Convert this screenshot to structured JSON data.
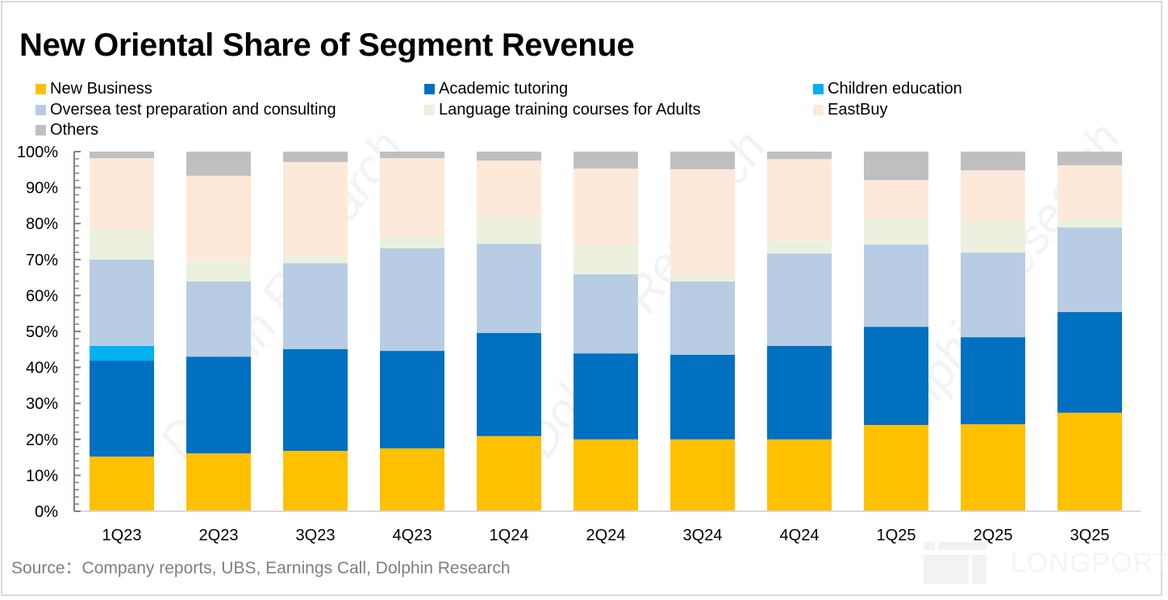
{
  "chart_data": {
    "type": "bar",
    "stacked": true,
    "percent_stacked": true,
    "title": "New Oriental Share of Segment Revenue",
    "xlabel": "",
    "ylabel": "",
    "ylim": [
      0,
      100
    ],
    "y_ticks": [
      "0%",
      "10%",
      "20%",
      "30%",
      "40%",
      "50%",
      "60%",
      "70%",
      "80%",
      "90%",
      "100%"
    ],
    "y_tick_values": [
      0,
      10,
      20,
      30,
      40,
      50,
      60,
      70,
      80,
      90,
      100
    ],
    "grid": false,
    "legend_position": "top",
    "categories": [
      "1Q23",
      "2Q23",
      "3Q23",
      "4Q23",
      "1Q24",
      "2Q24",
      "3Q24",
      "4Q24",
      "1Q25",
      "2Q25",
      "3Q25"
    ],
    "series": [
      {
        "name": "New Business",
        "color": "#FFC000",
        "values": [
          15.2,
          16.1,
          16.8,
          17.5,
          20.9,
          20.0,
          20.0,
          20.0,
          24.0,
          24.2,
          27.4
        ]
      },
      {
        "name": "Academic tutoring",
        "color": "#0070C0",
        "values": [
          26.7,
          26.9,
          28.3,
          27.1,
          28.7,
          23.9,
          23.5,
          26.0,
          27.3,
          24.2,
          28.0
        ]
      },
      {
        "name": "Children education",
        "color": "#00B0F0",
        "values": [
          4.1,
          0,
          0,
          0,
          0,
          0,
          0,
          0,
          0,
          0,
          0
        ]
      },
      {
        "name": "Oversea test preparation and consulting",
        "color": "#B8CCE4",
        "values": [
          24.0,
          20.9,
          23.9,
          28.5,
          24.8,
          22.0,
          20.4,
          25.7,
          22.9,
          23.5,
          23.5
        ]
      },
      {
        "name": "Language training courses for Adults",
        "color": "#EBF1DE",
        "values": [
          8.3,
          5.8,
          2.0,
          3.6,
          7.2,
          8.1,
          2.0,
          3.6,
          7.0,
          8.6,
          2.3
        ]
      },
      {
        "name": "EastBuy",
        "color": "#FDE9D9",
        "values": [
          19.9,
          23.6,
          26.1,
          21.5,
          15.9,
          21.3,
          29.2,
          22.6,
          10.9,
          14.3,
          15.0
        ]
      },
      {
        "name": "Others",
        "color": "#BFBFBF",
        "values": [
          1.8,
          6.7,
          2.9,
          1.8,
          2.5,
          4.7,
          4.9,
          2.1,
          7.9,
          5.2,
          3.8
        ]
      }
    ]
  },
  "legend": {
    "items": [
      "New Business",
      "Academic tutoring",
      "Children education",
      "Oversea test preparation and consulting",
      "Language training courses for Adults",
      "EastBuy",
      "Others"
    ]
  },
  "footer": {
    "source": "Source：Company reports, UBS, Earnings Call, Dolphin Research"
  },
  "watermark": {
    "brand": "LONGPORT",
    "diagonal": "Dolphin Research"
  }
}
